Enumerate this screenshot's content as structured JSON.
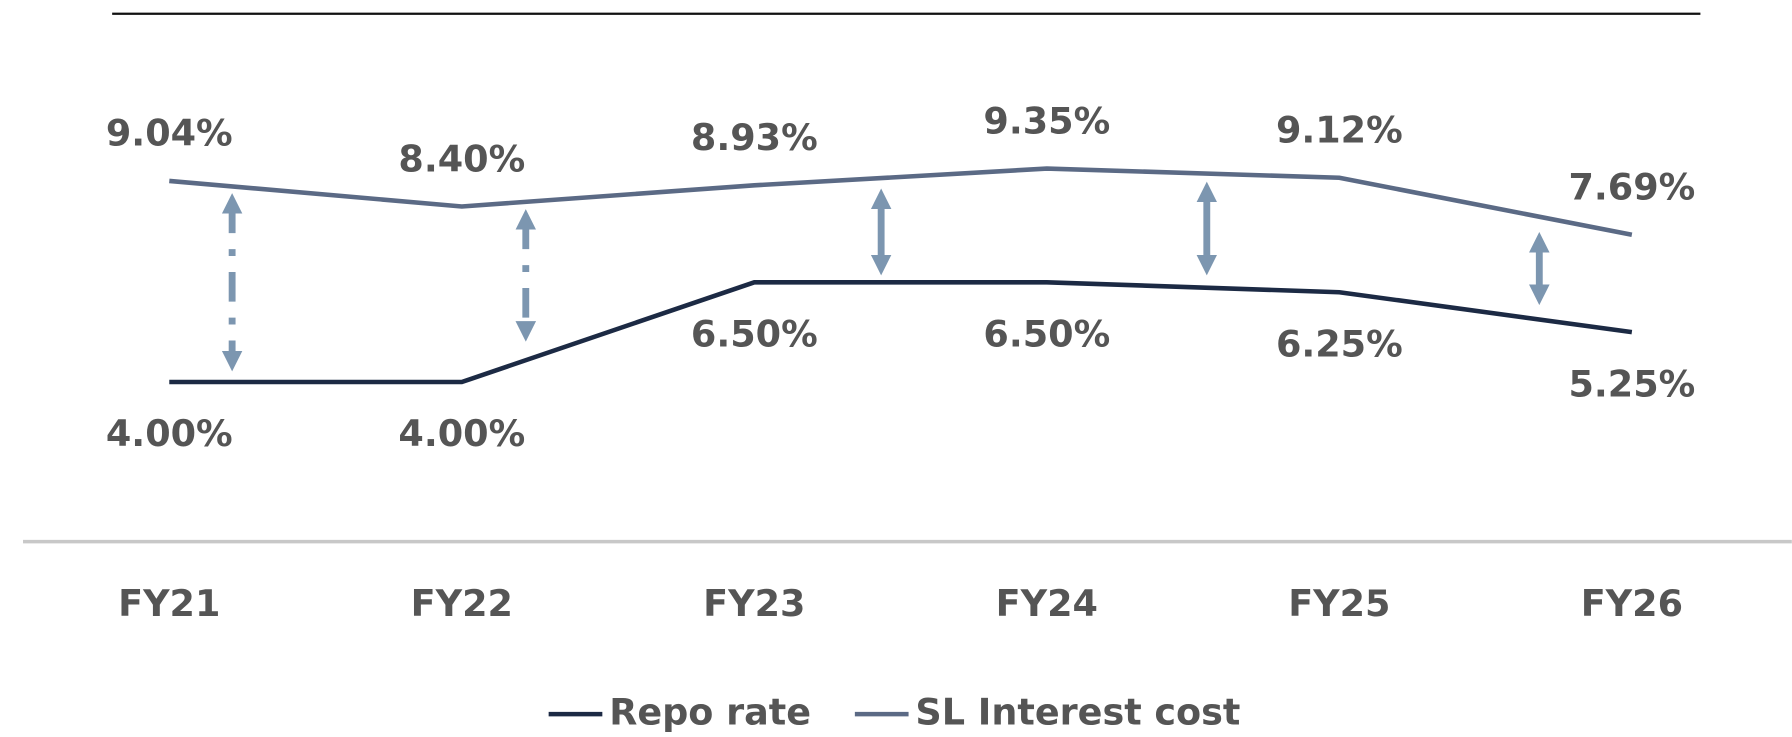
{
  "chart_data": {
    "type": "line",
    "categories": [
      "FY21",
      "FY22",
      "FY23",
      "FY24",
      "FY25",
      "FY26"
    ],
    "series": [
      {
        "name": "Repo rate",
        "color": "#1c2a44",
        "values": [
          4,
          4,
          6.5,
          6.5,
          6.25,
          5.25
        ],
        "value_labels": [
          "4.00%",
          "4.00%",
          "6.50%",
          "6.50%",
          "6.25%",
          "5.25%"
        ]
      },
      {
        "name": "SL Interest cost",
        "color": "#5b6a85",
        "values": [
          9.04,
          8.4,
          8.93,
          9.35,
          9.12,
          7.69
        ],
        "value_labels": [
          "9.04%",
          "8.40%",
          "8.93%",
          "9.35%",
          "9.12%",
          "7.69%"
        ]
      }
    ],
    "ylim": [
      0,
      12
    ]
  }
}
